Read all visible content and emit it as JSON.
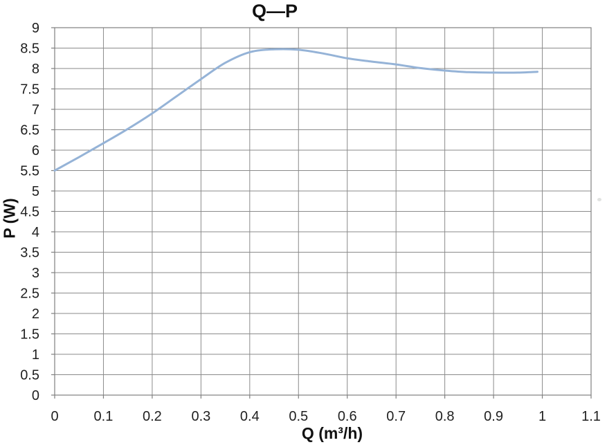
{
  "chart_data": {
    "type": "line",
    "title": "Q—P",
    "xlabel": "Q (m³/h)",
    "ylabel": "P (W)",
    "xlim": [
      0,
      1.1
    ],
    "ylim": [
      0,
      9
    ],
    "grid": true,
    "legend": false,
    "x_ticks": [
      0,
      0.1,
      0.2,
      0.3,
      0.4,
      0.5,
      0.6,
      0.7,
      0.8,
      0.9,
      1,
      1.1
    ],
    "x_tick_labels": [
      "0",
      "0.1",
      "0.2",
      "0.3",
      "0.4",
      "0.5",
      "0.6",
      "0.7",
      "0.8",
      "0.9",
      "1",
      "1.1"
    ],
    "y_ticks": [
      0,
      0.5,
      1,
      1.5,
      2,
      2.5,
      3,
      3.5,
      4,
      4.5,
      5,
      5.5,
      6,
      6.5,
      7,
      7.5,
      8,
      8.5,
      9
    ],
    "y_tick_labels": [
      "0",
      "0.5",
      "1",
      "1.5",
      "2",
      "2.5",
      "3",
      "3.5",
      "4",
      "4.5",
      "5",
      "5.5",
      "6",
      "6.5",
      "7",
      "7.5",
      "8",
      "8.5",
      "9"
    ],
    "series": [
      {
        "name": "P",
        "smooth": true,
        "color": "#95B3D7",
        "line_width": 3,
        "x": [
          0,
          0.05,
          0.1,
          0.15,
          0.2,
          0.25,
          0.3,
          0.35,
          0.4,
          0.45,
          0.5,
          0.55,
          0.6,
          0.65,
          0.7,
          0.75,
          0.8,
          0.85,
          0.9,
          0.95,
          0.99
        ],
        "y": [
          5.5,
          5.83,
          6.17,
          6.52,
          6.9,
          7.32,
          7.74,
          8.14,
          8.4,
          8.47,
          8.46,
          8.37,
          8.25,
          8.17,
          8.1,
          8.01,
          7.95,
          7.91,
          7.9,
          7.9,
          7.92
        ]
      }
    ],
    "style": {
      "grid_color": "#8a8a8a",
      "axis_color": "#7f7f7f",
      "tick_label_color": "#1f1f1f",
      "tick_font_size": 20,
      "background": "#ffffff"
    }
  }
}
